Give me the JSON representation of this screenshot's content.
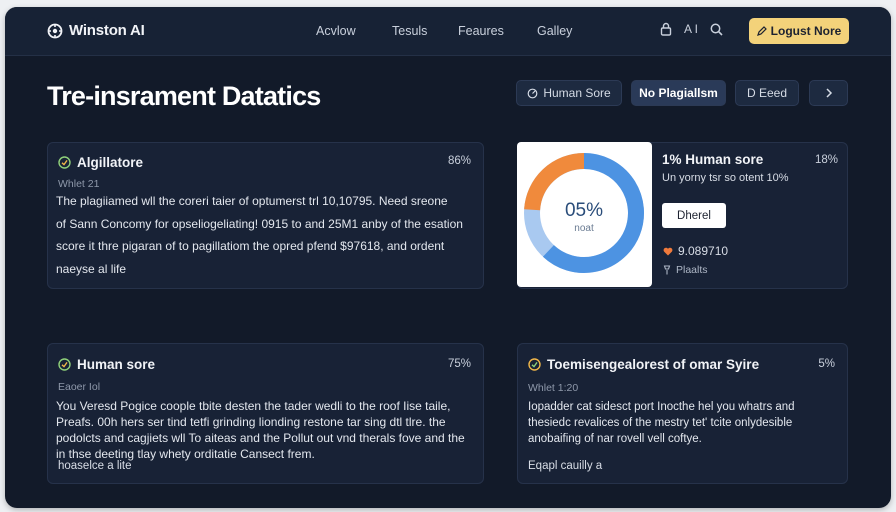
{
  "app": {
    "logo_text": "Winston AI"
  },
  "nav": {
    "items": [
      "Acvlow",
      "Tesuls",
      "Feaures",
      "Galley"
    ]
  },
  "top_icons": {
    "label": "A I"
  },
  "cta": {
    "label": "Logust Nore"
  },
  "page": {
    "title": "Tre-insrament Datatics"
  },
  "filters": [
    {
      "label": "Human Sore"
    },
    {
      "label": "No Plagiallsm"
    },
    {
      "label": "D Eeed"
    }
  ],
  "cards": {
    "plagiarism": {
      "title": "Algillatore",
      "pct": "86%",
      "meta": "Whlet 21",
      "lines": [
        "The plagiiamed wll the coreri taier of optumerst trl 10,10795. Need sreone",
        "of Sann Concomy for opseliogeliating! 0915 to and 25M1 anby of the esation",
        "score it thre pigaran of to pagillatiom the opred pfend $97618, and ordent",
        "naeyse al life"
      ]
    },
    "human_score": {
      "title": "1% Human sore",
      "pct": "18%",
      "sub": "Un yorny tsr so otent 10%",
      "button": "Dherel",
      "value": "9.089710",
      "foot": "Plaalts",
      "donut_label": "05%",
      "donut_sub": "noat",
      "donut_fraction": 0.62,
      "colors": {
        "primary": "#4d93e2",
        "secondary": "#f08a3c",
        "track": "#a9c9f0"
      }
    },
    "human": {
      "title": "Human sore",
      "pct": "75%",
      "meta": "Eaoer Iol",
      "lines": [
        "You Veresd Pogice coople tbite desten the tader wedli to the roof Iise taile,",
        "Preafs. 00h hers ser tind tetfi grinding lionding restone tar sing dtl tlre. the",
        "podolcts and cagjiets wll To aiteas and the Pollut out vnd therals fove and the",
        "in thse deeting tlay whety orditatie Cansect frem."
      ],
      "foot": "hoaselce a lite"
    },
    "toemise": {
      "title": "Toemisengealorest of omar Syire",
      "pct": "5%",
      "meta": "Whlet 1:20",
      "lines": [
        "Iopadder cat sidesct port Inocthe hel you whatrs and",
        "thesiedc revalices of the mestry tet' tcite onlydesible",
        "anobaifing of nar rovell vell coftye."
      ],
      "foot": "Eqapl cauilly a"
    }
  }
}
